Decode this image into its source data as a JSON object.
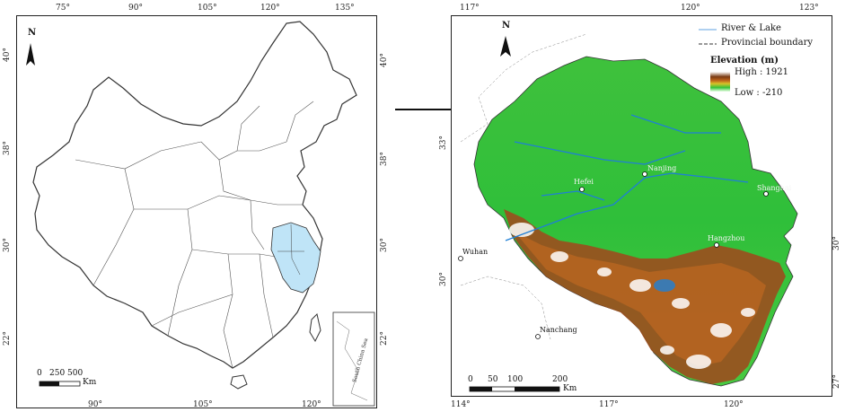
{
  "left_map": {
    "north": "N",
    "top_ticks": [
      "75°",
      "90°",
      "105°",
      "120°",
      "135°"
    ],
    "bottom_ticks": [
      "90°",
      "105°",
      "120°"
    ],
    "left_ticks": [
      "40°",
      "38°",
      "30°",
      "22°"
    ],
    "right_ticks": [
      "40°",
      "38°",
      "30°",
      "22°"
    ],
    "scale_labels": [
      "0",
      "250",
      "500"
    ],
    "scale_unit": "Km",
    "inset_label": "South China Sea",
    "highlight_color": "#bfe4f7"
  },
  "right_map": {
    "north": "N",
    "top_ticks": [
      "117°",
      "120°",
      "123°"
    ],
    "bottom_ticks": [
      "114°",
      "117°",
      "120°"
    ],
    "left_ticks": [
      "33°",
      "30°"
    ],
    "right_ticks": [
      "30°",
      "27°"
    ],
    "cities": [
      "Hefei",
      "Nanjing",
      "Shanghai",
      "Hangzhou",
      "Wuhan",
      "Nanchang"
    ],
    "legend": {
      "river": "River & Lake",
      "boundary": "Provincial boundary",
      "title": "Elevation (m)",
      "high": "High : 1921",
      "low": "Low : -210"
    },
    "scale_labels": [
      "0",
      "50",
      "100",
      "200"
    ],
    "scale_unit": "Km",
    "colors": {
      "lowland": "#2fbf3a",
      "plain": "#5fcf3c",
      "mountain": "#9a4f1e",
      "peak": "#ffffff",
      "water": "#1f7fd6"
    }
  }
}
